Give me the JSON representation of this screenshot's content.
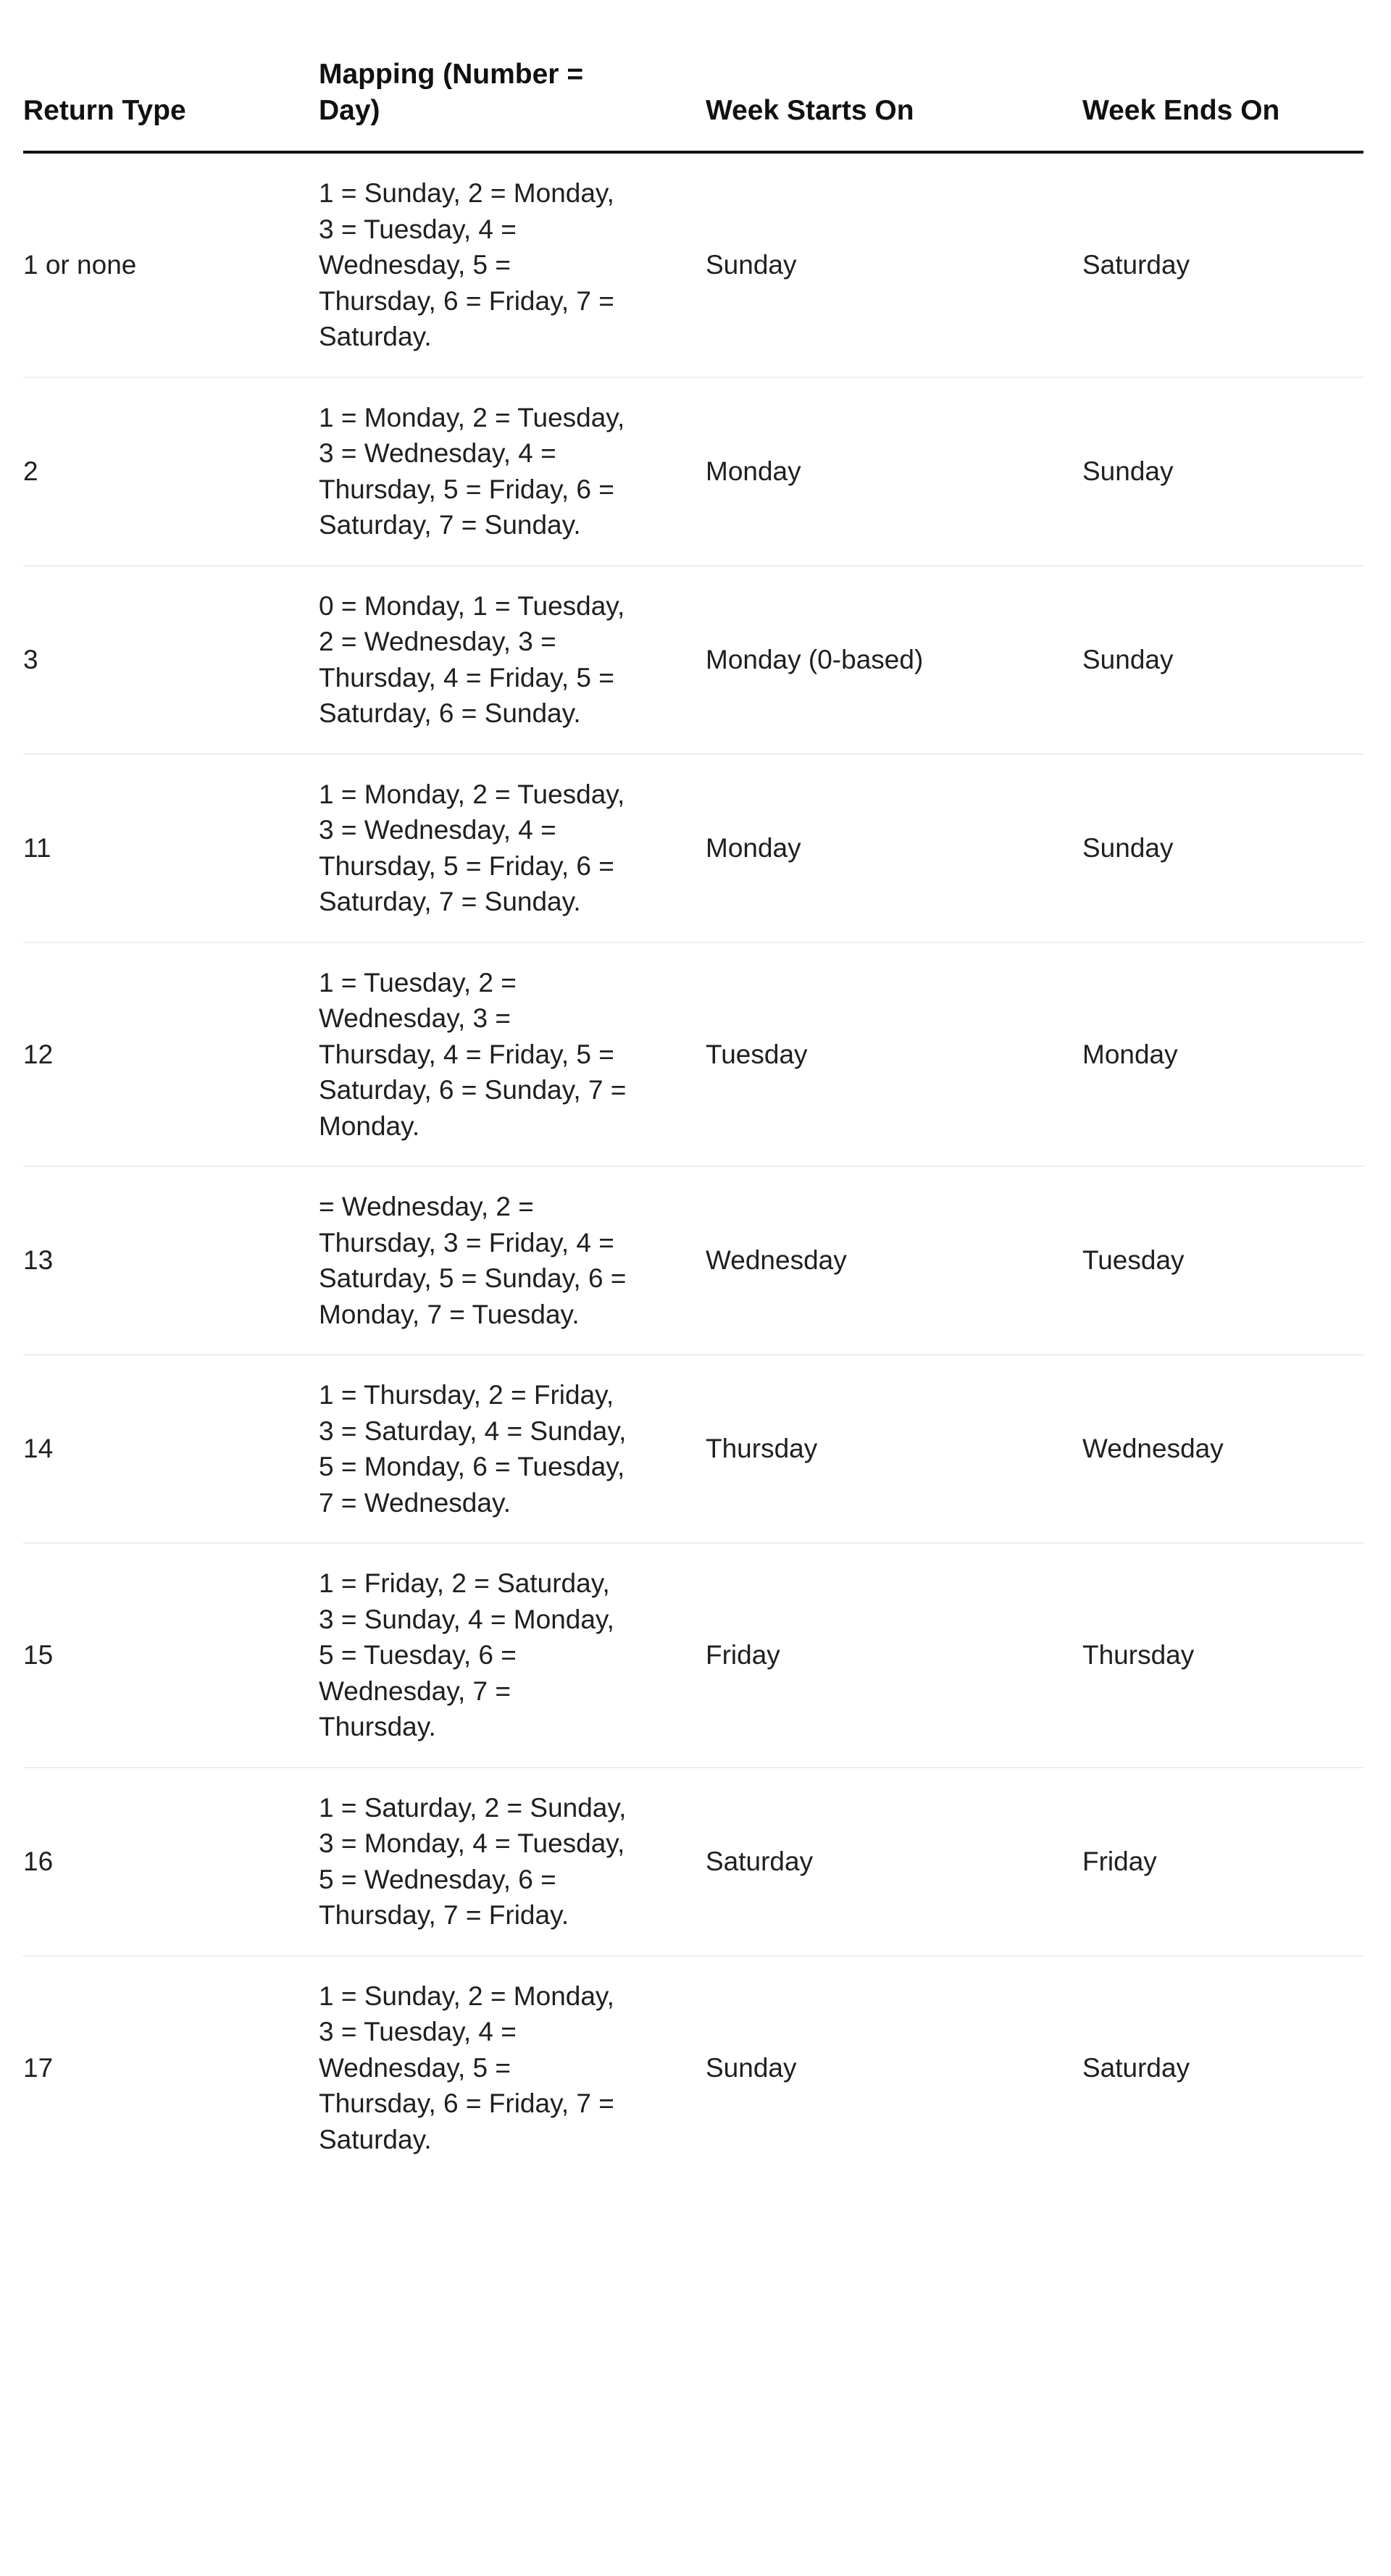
{
  "table": {
    "headers": [
      "Return Type",
      "Mapping (Number = Day)",
      "Week Starts On",
      "Week Ends On"
    ],
    "rows": [
      {
        "return_type": "1 or none",
        "mapping": "1 = Sunday, 2 = Monday, 3 = Tuesday, 4 = Wednesday, 5 = Thursday, 6 = Friday, 7 = Saturday.",
        "starts": "Sunday",
        "ends": "Saturday"
      },
      {
        "return_type": "2",
        "mapping": "1 = Monday, 2 = Tuesday, 3 = Wednesday, 4 = Thursday, 5 = Friday, 6 = Saturday, 7 = Sunday.",
        "starts": "Monday",
        "ends": "Sunday"
      },
      {
        "return_type": "3",
        "mapping": "0 = Monday, 1 = Tuesday, 2 = Wednesday, 3 = Thursday, 4 = Friday, 5 = Saturday, 6 = Sunday.",
        "starts": "Monday (0-based)",
        "ends": "Sunday"
      },
      {
        "return_type": "11",
        "mapping": "1 = Monday, 2 = Tuesday, 3 = Wednesday, 4 = Thursday, 5 = Friday, 6 = Saturday, 7 = Sunday.",
        "starts": "Monday",
        "ends": "Sunday"
      },
      {
        "return_type": "12",
        "mapping": "1 = Tuesday, 2 = Wednesday, 3 = Thursday, 4 = Friday, 5 = Saturday, 6 = Sunday, 7 = Monday.",
        "starts": "Tuesday",
        "ends": "Monday"
      },
      {
        "return_type": "13",
        "mapping": "= Wednesday, 2 = Thursday, 3 = Friday, 4 = Saturday, 5 = Sunday, 6 = Monday, 7 = Tuesday.",
        "starts": "Wednesday",
        "ends": "Tuesday"
      },
      {
        "return_type": "14",
        "mapping": "1 = Thursday, 2 = Friday, 3 = Saturday, 4 = Sunday, 5 = Monday, 6 = Tuesday, 7 = Wednesday.",
        "starts": "Thursday",
        "ends": "Wednesday"
      },
      {
        "return_type": "15",
        "mapping": "1 = Friday, 2 = Saturday, 3 = Sunday, 4 = Monday, 5 = Tuesday, 6 = Wednesday, 7 = Thursday.",
        "starts": "Friday",
        "ends": "Thursday"
      },
      {
        "return_type": "16",
        "mapping": "1 = Saturday, 2 = Sunday, 3 = Monday, 4 = Tuesday, 5 = Wednesday, 6 = Thursday, 7 = Friday.",
        "starts": "Saturday",
        "ends": "Friday"
      },
      {
        "return_type": "17",
        "mapping": "1 = Sunday, 2 = Monday, 3 = Tuesday, 4 = Wednesday, 5 = Thursday, 6 = Friday, 7 = Saturday.",
        "starts": "Sunday",
        "ends": "Saturday"
      }
    ]
  }
}
